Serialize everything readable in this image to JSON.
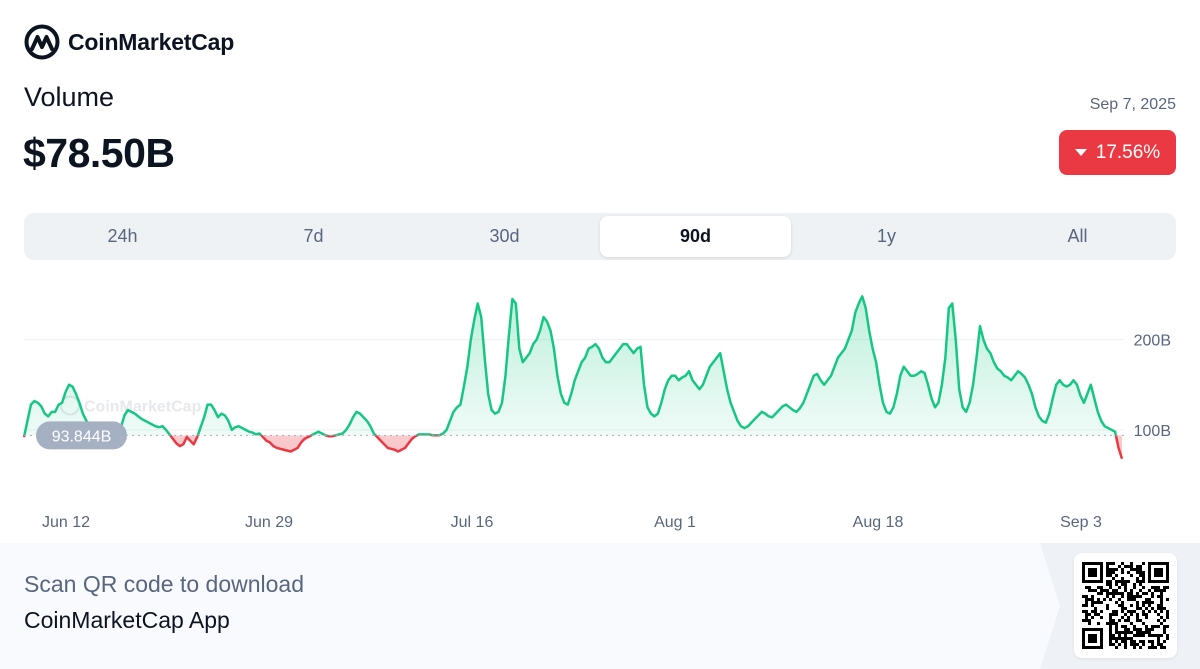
{
  "brand": {
    "name": "CoinMarketCap",
    "logo_icon": "cmc-logo-icon",
    "brand_color": "#0d1421"
  },
  "header": {
    "title": "Volume",
    "value": "$78.50B",
    "date": "Sep 7, 2025",
    "change": "17.56%",
    "change_direction": "down",
    "change_color": "#ea3943"
  },
  "range_tabs": [
    {
      "label": "24h",
      "active": false
    },
    {
      "label": "7d",
      "active": false
    },
    {
      "label": "30d",
      "active": false
    },
    {
      "label": "90d",
      "active": true
    },
    {
      "label": "1y",
      "active": false
    },
    {
      "label": "All",
      "active": false
    }
  ],
  "chart_data": {
    "type": "area",
    "x_tick_labels": [
      "Jun 12",
      "Jun 29",
      "Jul 16",
      "Aug 1",
      "Aug 18",
      "Sep 3"
    ],
    "y_tick_labels": [
      "200B",
      "100B"
    ],
    "y_ticks": [
      200,
      100
    ],
    "ylim": [
      50,
      255
    ],
    "baseline": 93.844,
    "baseline_label": "93.844B",
    "up_color": "#16c784",
    "down_color": "#ea3943",
    "grid": true,
    "watermark": "CoinMarketCap",
    "series": [
      {
        "values": [
          92,
          110,
          128,
          132,
          130,
          126,
          118,
          115,
          120,
          120,
          128,
          130,
          142,
          150,
          148,
          140,
          130,
          118,
          110,
          104,
          96,
          92,
          90,
          89,
          88,
          88,
          90,
          94,
          103,
          116,
          122,
          120,
          118,
          115,
          112,
          110,
          108,
          106,
          104,
          103,
          104,
          100,
          95,
          90,
          85,
          82,
          84,
          92,
          88,
          84,
          92,
          103,
          114,
          128,
          128,
          122,
          114,
          118,
          116,
          110,
          100,
          103,
          104,
          102,
          100,
          98,
          97,
          95,
          96,
          92,
          88,
          86,
          82,
          80,
          79,
          78,
          77,
          76,
          78,
          80,
          86,
          90,
          92,
          94,
          96,
          98,
          96,
          94,
          93,
          93,
          94,
          95,
          96,
          100,
          106,
          114,
          120,
          118,
          114,
          110,
          104,
          96,
          92,
          88,
          84,
          80,
          79,
          78,
          76,
          78,
          80,
          85,
          90,
          93,
          95,
          95,
          95,
          95,
          94,
          94,
          94,
          96,
          100,
          110,
          120,
          125,
          128,
          148,
          170,
          200,
          222,
          240,
          225,
          180,
          140,
          122,
          118,
          120,
          130,
          160,
          205,
          245,
          240,
          190,
          175,
          180,
          185,
          195,
          200,
          210,
          225,
          220,
          210,
          190,
          160,
          140,
          130,
          128,
          140,
          155,
          165,
          175,
          180,
          190,
          192,
          195,
          190,
          180,
          175,
          175,
          180,
          185,
          190,
          195,
          195,
          190,
          185,
          190,
          192,
          150,
          125,
          118,
          115,
          118,
          130,
          145,
          155,
          160,
          160,
          155,
          158,
          160,
          165,
          155,
          150,
          145,
          150,
          160,
          170,
          175,
          180,
          185,
          165,
          145,
          130,
          120,
          110,
          104,
          102,
          104,
          108,
          112,
          116,
          120,
          118,
          115,
          114,
          118,
          122,
          126,
          128,
          125,
          122,
          120,
          124,
          130,
          140,
          150,
          160,
          162,
          155,
          150,
          155,
          160,
          170,
          180,
          185,
          190,
          200,
          210,
          230,
          240,
          248,
          235,
          210,
          190,
          175,
          150,
          130,
          120,
          118,
          125,
          140,
          160,
          170,
          165,
          160,
          160,
          162,
          165,
          163,
          150,
          135,
          125,
          130,
          150,
          180,
          235,
          240,
          200,
          145,
          125,
          120,
          130,
          150,
          180,
          215,
          200,
          190,
          185,
          175,
          168,
          165,
          160,
          158,
          155,
          160,
          165,
          162,
          158,
          150,
          140,
          125,
          115,
          110,
          108,
          118,
          135,
          150,
          155,
          150,
          148,
          150,
          155,
          150,
          138,
          130,
          140,
          150,
          135,
          120,
          110,
          104,
          102,
          100,
          98,
          80,
          68
        ]
      }
    ]
  },
  "footer": {
    "cta_line1": "Scan QR code to download",
    "cta_line2": "CoinMarketCap App",
    "qr_icon": "qr-code-icon"
  }
}
